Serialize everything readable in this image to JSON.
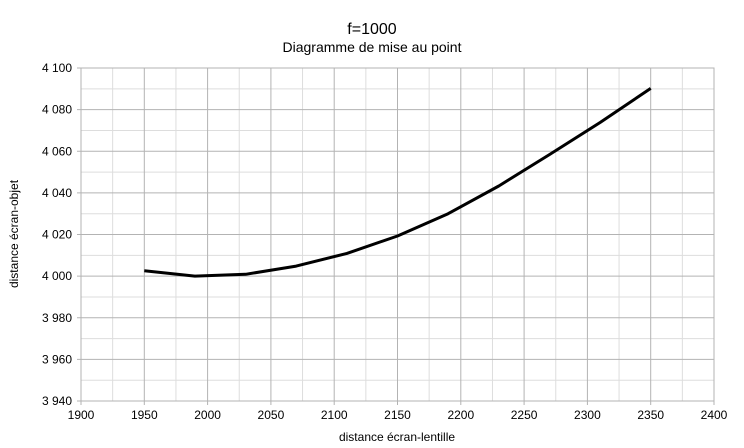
{
  "chart_data": {
    "type": "line",
    "title": "f=1000",
    "subtitle": "Diagramme de mise au point",
    "xlabel": "distance écran-lentille",
    "ylabel": "distance écran-objet",
    "xlim": [
      1900,
      2400
    ],
    "ylim": [
      3940,
      4100
    ],
    "x_ticks": [
      "1900",
      "1950",
      "2000",
      "2050",
      "2100",
      "2150",
      "2200",
      "2250",
      "2300",
      "2350",
      "2400"
    ],
    "y_ticks": [
      "4 100",
      "4 080",
      "4 060",
      "4 040",
      "4 020",
      "4 000",
      "3 980",
      "3 960",
      "3 940"
    ],
    "grid": true,
    "series": [
      {
        "color": "#000000",
        "x": [
          1950,
          1990,
          2030,
          2070,
          2110,
          2150,
          2190,
          2230,
          2270,
          2310,
          2350
        ],
        "y": [
          4002.6,
          4000.0,
          4000.9,
          4004.8,
          4010.9,
          4019.3,
          4030.0,
          4043.3,
          4058.4,
          4073.8,
          4090.2
        ]
      }
    ]
  }
}
